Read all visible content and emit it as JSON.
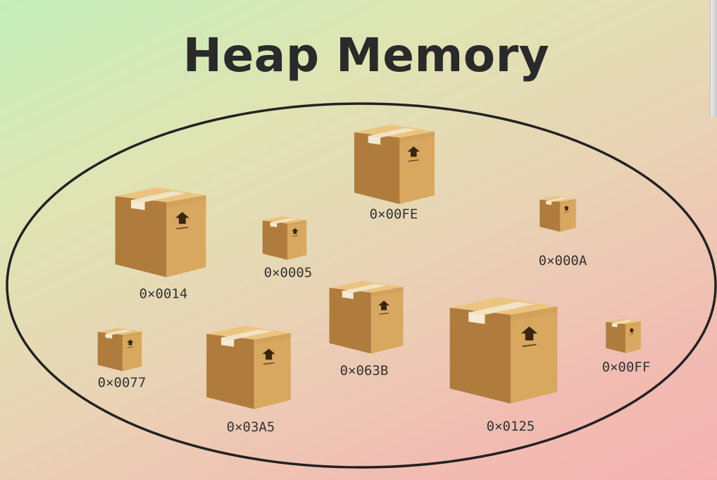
{
  "title": "Heap Memory",
  "colors": {
    "box_left": "#b07c3d",
    "box_right": "#d8a860",
    "box_top": "#ebc47f",
    "tape": "#f2e3c6",
    "arrow": "#3a2510",
    "outline": "#222222"
  },
  "boxes": [
    {
      "label": "0×0014",
      "icon": "box-icon"
    },
    {
      "label": "0×0005",
      "icon": "box-icon"
    },
    {
      "label": "0×00FE",
      "icon": "box-icon"
    },
    {
      "label": "0×000A",
      "icon": "box-icon"
    },
    {
      "label": "0×0077",
      "icon": "box-icon"
    },
    {
      "label": "0×03A5",
      "icon": "box-icon"
    },
    {
      "label": "0×063B",
      "icon": "box-icon"
    },
    {
      "label": "0×0125",
      "icon": "box-icon"
    },
    {
      "label": "0×00FF",
      "icon": "box-icon"
    }
  ]
}
